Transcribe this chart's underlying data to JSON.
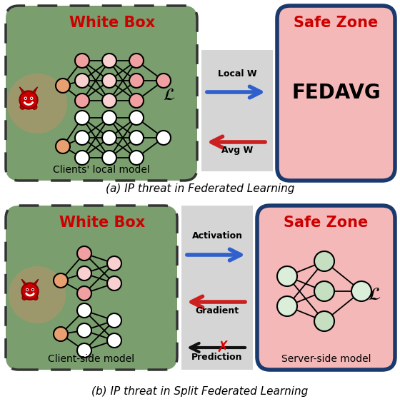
{
  "fig_width": 5.6,
  "fig_height": 5.66,
  "bg_color": "#ffffff",
  "panel_a": {
    "whitebox_bg": "#7a9e6e",
    "whitebox_title": "White Box",
    "whitebox_title_color": "#cc0000",
    "whitebox_border_color": "#333333",
    "whitebox_label": "Clients' local model",
    "safezone_bg": "#f5b8b8",
    "safezone_border": "#1a3a6e",
    "safezone_title": "Safe Zone",
    "safezone_title_color": "#cc0000",
    "safezone_text": "FEDAVG",
    "arrow_bg": "#d5d5d5",
    "arrow1_label": "Local W",
    "arrow1_color": "#3060cc",
    "arrow2_label": "Avg W",
    "arrow2_color": "#cc2020",
    "caption": "(a) IP threat in Federated Learning"
  },
  "panel_b": {
    "whitebox_bg": "#7a9e6e",
    "whitebox_title": "White Box",
    "whitebox_title_color": "#cc0000",
    "whitebox_border_color": "#333333",
    "whitebox_label": "Client-side model",
    "safezone_bg": "#f5b8b8",
    "safezone_border": "#1a3a6e",
    "safezone_title": "Safe Zone",
    "safezone_title_color": "#cc0000",
    "safezone_label": "Server-side model",
    "arrow_bg": "#d5d5d5",
    "arrow1_label": "Activation",
    "arrow1_color": "#3060cc",
    "arrow2_label": "Gradient",
    "arrow2_color": "#cc2020",
    "arrow3_label": "Prediction",
    "arrow3_color": "#111111",
    "caption": "(b) IP threat in Split Federated Learning"
  },
  "node_pink": "#f0a0a0",
  "node_white": "#ffffff",
  "node_lpink": "#f8d0d0",
  "node_green": "#c5dfc0",
  "node_lgreen": "#daeeda",
  "glow_color": "#d4906a",
  "devil_red": "#cc0000"
}
